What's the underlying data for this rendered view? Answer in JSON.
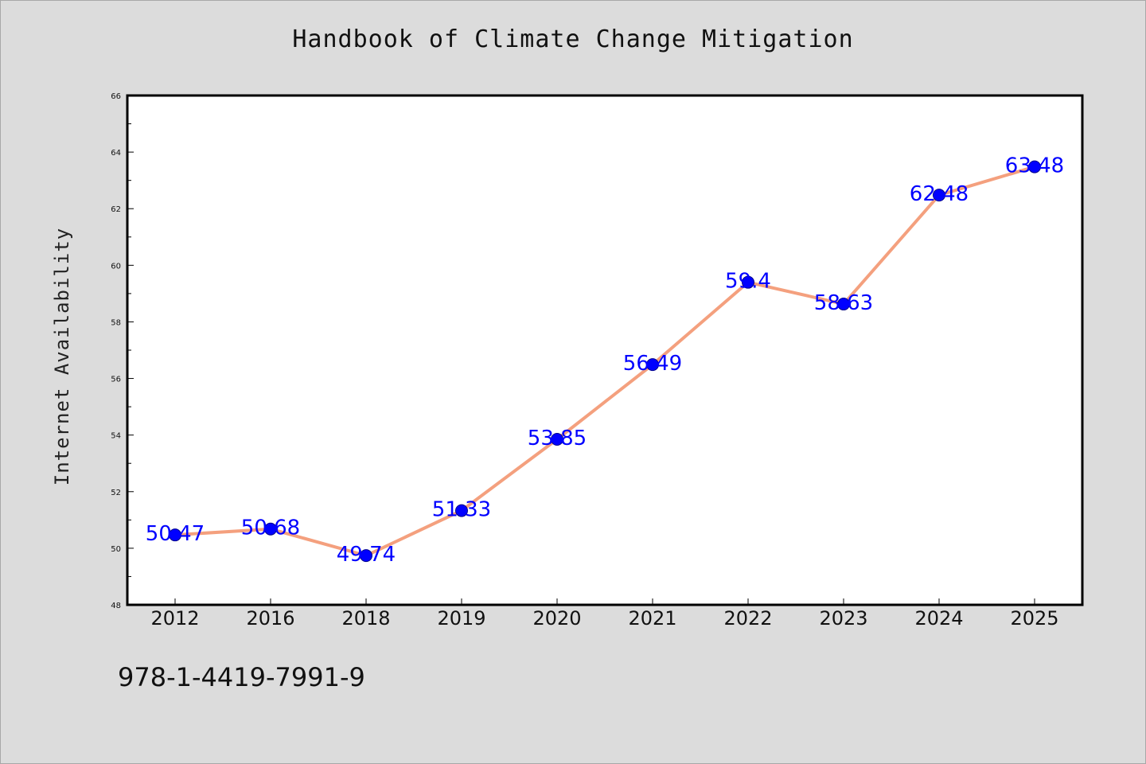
{
  "chart_data": {
    "type": "line",
    "title": "Handbook of Climate Change Mitigation",
    "xlabel": "",
    "ylabel": "Internet Availability",
    "categories": [
      "2012",
      "2016",
      "2018",
      "2019",
      "2020",
      "2021",
      "2022",
      "2023",
      "2024",
      "2025"
    ],
    "values": [
      50.47,
      50.68,
      49.74,
      51.33,
      53.85,
      56.49,
      59.4,
      58.63,
      62.48,
      63.48
    ],
    "data_labels": [
      "50.47",
      "50.68",
      "49.74",
      "51.33",
      "53.85",
      "56.49",
      "59.4",
      "58.63",
      "62.48",
      "63.48"
    ],
    "ylim": [
      48,
      66
    ],
    "yticks": [
      48,
      50,
      52,
      54,
      56,
      58,
      60,
      62,
      64,
      66
    ],
    "grid": false,
    "line_color": "#f4a07e",
    "marker_color": "#0000ff",
    "label_color": "#0000ff"
  },
  "footer": {
    "isbn": "978-1-4419-7991-9"
  }
}
